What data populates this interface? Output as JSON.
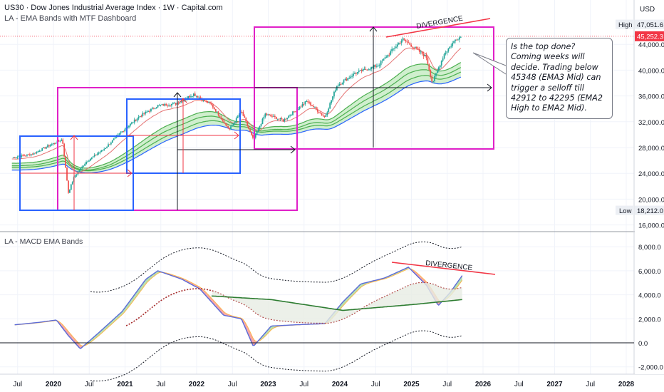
{
  "header": {
    "title": "US30 · Dow Jones Industrial Average Index · 1W · Capital.com",
    "indicator_top": "LA - EMA Bands with MTF Dashboard",
    "indicator_bottom": "LA - MACD EMA Bands"
  },
  "note": {
    "text": "Is the top done? Coming weeks will decide. Trading below 45348 (EMA3 Mid) can trigger a selloff till 42912 to 42295 (EMA2 High to EMA2 Mid)."
  },
  "annotations": {
    "divergence_top": "DIVERGENCE",
    "divergence_bottom": "DIVERGENCE"
  },
  "colors": {
    "magenta": "#e020c8",
    "blue": "#2962ff",
    "red_arrow": "#f23645",
    "divergence": "#f23645",
    "price_tag": "#f23645",
    "band_green": "#4caf50",
    "band_blue": "#2962ff"
  },
  "chart_data": [
    {
      "type": "candlestick",
      "title": "US30 · Dow Jones Industrial Average Index · 1W · Capital.com",
      "currency": "USD",
      "y_axis_ticks": [
        16000,
        20000,
        24000,
        28000,
        32000,
        36000,
        40000,
        44000
      ],
      "y_tick_labels": [
        "16,000.0",
        "20,000.0",
        "24,000.0",
        "28,000.0",
        "32,000.0",
        "36,000.0",
        "40,000.0",
        "44,000.0"
      ],
      "ylim": [
        15500,
        49300
      ],
      "high_label": "High",
      "high_value": "47,051.6",
      "low_label": "Low",
      "low_value": "18,212.0",
      "last_price": "45,252.3",
      "x_tick_labels": [
        "Jul",
        "2020",
        "Jul",
        "2021",
        "Jul",
        "2022",
        "Jul",
        "2023",
        "Jul",
        "2024",
        "Jul",
        "2025",
        "Jul",
        "2026",
        "Jul",
        "2027",
        "Jul",
        "2028"
      ],
      "price_path": [
        {
          "date": "2019-06",
          "close": 26500
        },
        {
          "date": "2019-09",
          "close": 27000
        },
        {
          "date": "2019-12",
          "close": 28400
        },
        {
          "date": "2020-02",
          "close": 29300
        },
        {
          "date": "2020-03",
          "close": 21000
        },
        {
          "date": "2020-04",
          "close": 23500
        },
        {
          "date": "2020-06",
          "close": 25800
        },
        {
          "date": "2020-09",
          "close": 27800
        },
        {
          "date": "2020-12",
          "close": 30500
        },
        {
          "date": "2021-03",
          "close": 32900
        },
        {
          "date": "2021-06",
          "close": 34500
        },
        {
          "date": "2021-09",
          "close": 34800
        },
        {
          "date": "2021-12",
          "close": 36300
        },
        {
          "date": "2022-03",
          "close": 34600
        },
        {
          "date": "2022-06",
          "close": 30800
        },
        {
          "date": "2022-08",
          "close": 33600
        },
        {
          "date": "2022-10",
          "close": 29200
        },
        {
          "date": "2022-12",
          "close": 33200
        },
        {
          "date": "2023-03",
          "close": 32200
        },
        {
          "date": "2023-07",
          "close": 35200
        },
        {
          "date": "2023-10",
          "close": 32700
        },
        {
          "date": "2023-12",
          "close": 37600
        },
        {
          "date": "2024-03",
          "close": 39500
        },
        {
          "date": "2024-07",
          "close": 40800
        },
        {
          "date": "2024-11",
          "close": 44800
        },
        {
          "date": "2025-01",
          "close": 43500
        },
        {
          "date": "2025-03",
          "close": 42000
        },
        {
          "date": "2025-04",
          "close": 38000
        },
        {
          "date": "2025-06",
          "close": 42500
        },
        {
          "date": "2025-08",
          "close": 44900
        },
        {
          "date": "2025-09",
          "close": 45252
        }
      ]
    },
    {
      "type": "line",
      "title": "LA - MACD EMA Bands",
      "y_axis_ticks": [
        -2000,
        0,
        2000,
        4000,
        6000,
        8000
      ],
      "y_tick_labels": [
        "-2,000.0",
        "0.0",
        "2,000.0",
        "4,000.0",
        "6,000.0",
        "8,000.0"
      ],
      "ylim": [
        -2500,
        8700
      ],
      "macd": [
        {
          "date": "2019-06",
          "v": 1500
        },
        {
          "date": "2019-10",
          "v": 1700
        },
        {
          "date": "2020-01",
          "v": 1900
        },
        {
          "date": "2020-03",
          "v": 600
        },
        {
          "date": "2020-05",
          "v": -500
        },
        {
          "date": "2020-08",
          "v": 800
        },
        {
          "date": "2020-12",
          "v": 2600
        },
        {
          "date": "2021-04",
          "v": 5300
        },
        {
          "date": "2021-06",
          "v": 6000
        },
        {
          "date": "2021-10",
          "v": 5300
        },
        {
          "date": "2022-01",
          "v": 4500
        },
        {
          "date": "2022-05",
          "v": 2300
        },
        {
          "date": "2022-08",
          "v": 2000
        },
        {
          "date": "2022-10",
          "v": -300
        },
        {
          "date": "2023-01",
          "v": 1400
        },
        {
          "date": "2023-05",
          "v": 1500
        },
        {
          "date": "2023-10",
          "v": 1600
        },
        {
          "date": "2024-01",
          "v": 3400
        },
        {
          "date": "2024-04",
          "v": 4900
        },
        {
          "date": "2024-08",
          "v": 5400
        },
        {
          "date": "2024-12",
          "v": 6300
        },
        {
          "date": "2025-03",
          "v": 4800
        },
        {
          "date": "2025-05",
          "v": 3100
        },
        {
          "date": "2025-07",
          "v": 4200
        },
        {
          "date": "2025-09",
          "v": 5600
        }
      ],
      "signal_slow": [
        {
          "date": "2022-03",
          "v": 3900
        },
        {
          "date": "2023-01",
          "v": 3600
        },
        {
          "date": "2024-01",
          "v": 2700
        },
        {
          "date": "2025-01",
          "v": 3200
        },
        {
          "date": "2025-09",
          "v": 3600
        }
      ]
    }
  ]
}
